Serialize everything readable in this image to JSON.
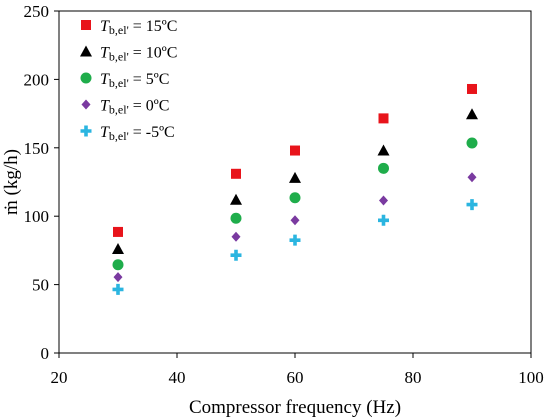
{
  "chart_data": {
    "type": "scatter",
    "title": "",
    "xlabel": "Compressor frequency (Hz)",
    "ylabel": "ṁ (kg/h)",
    "xlim": [
      20,
      100
    ],
    "ylim": [
      0,
      250
    ],
    "xticks": [
      20,
      40,
      60,
      80,
      100
    ],
    "yticks": [
      0,
      50,
      100,
      150,
      200,
      250
    ],
    "grid": false,
    "legend_position": "top-left",
    "x": [
      30,
      50,
      60,
      75,
      90
    ],
    "series": [
      {
        "name": "Tb,el' = 15ºC",
        "label_var": "T",
        "label_sub": "b,el'",
        "label_rest": " = 15ºC",
        "marker": "square",
        "color": "#e8141b",
        "values": [
          88.5,
          131,
          148,
          171.5,
          193
        ]
      },
      {
        "name": "Tb,el' = 10ºC",
        "label_var": "T",
        "label_sub": "b,el'",
        "label_rest": " = 10ºC",
        "marker": "triangle",
        "color": "#000000",
        "values": [
          76,
          112,
          128,
          148,
          174.5
        ]
      },
      {
        "name": "Tb,el' = 5ºC",
        "label_var": "T",
        "label_sub": "b,el'",
        "label_rest": " = 5ºC",
        "marker": "circle",
        "color": "#1fad4b",
        "values": [
          64.5,
          98.5,
          113.5,
          135,
          153.5
        ]
      },
      {
        "name": "Tb,el' = 0ºC",
        "label_var": "T",
        "label_sub": "b,el'",
        "label_rest": " = 0ºC",
        "marker": "diamond",
        "color": "#7a3aa0",
        "values": [
          55.5,
          85,
          97,
          111.5,
          128.5
        ]
      },
      {
        "name": "Tb,el' = -5ºC",
        "label_var": "T",
        "label_sub": "b,el'",
        "label_rest": " = -5ºC",
        "marker": "cross",
        "color": "#2bb5e0",
        "values": [
          46.5,
          71.5,
          82.5,
          97,
          108.5
        ]
      }
    ]
  }
}
